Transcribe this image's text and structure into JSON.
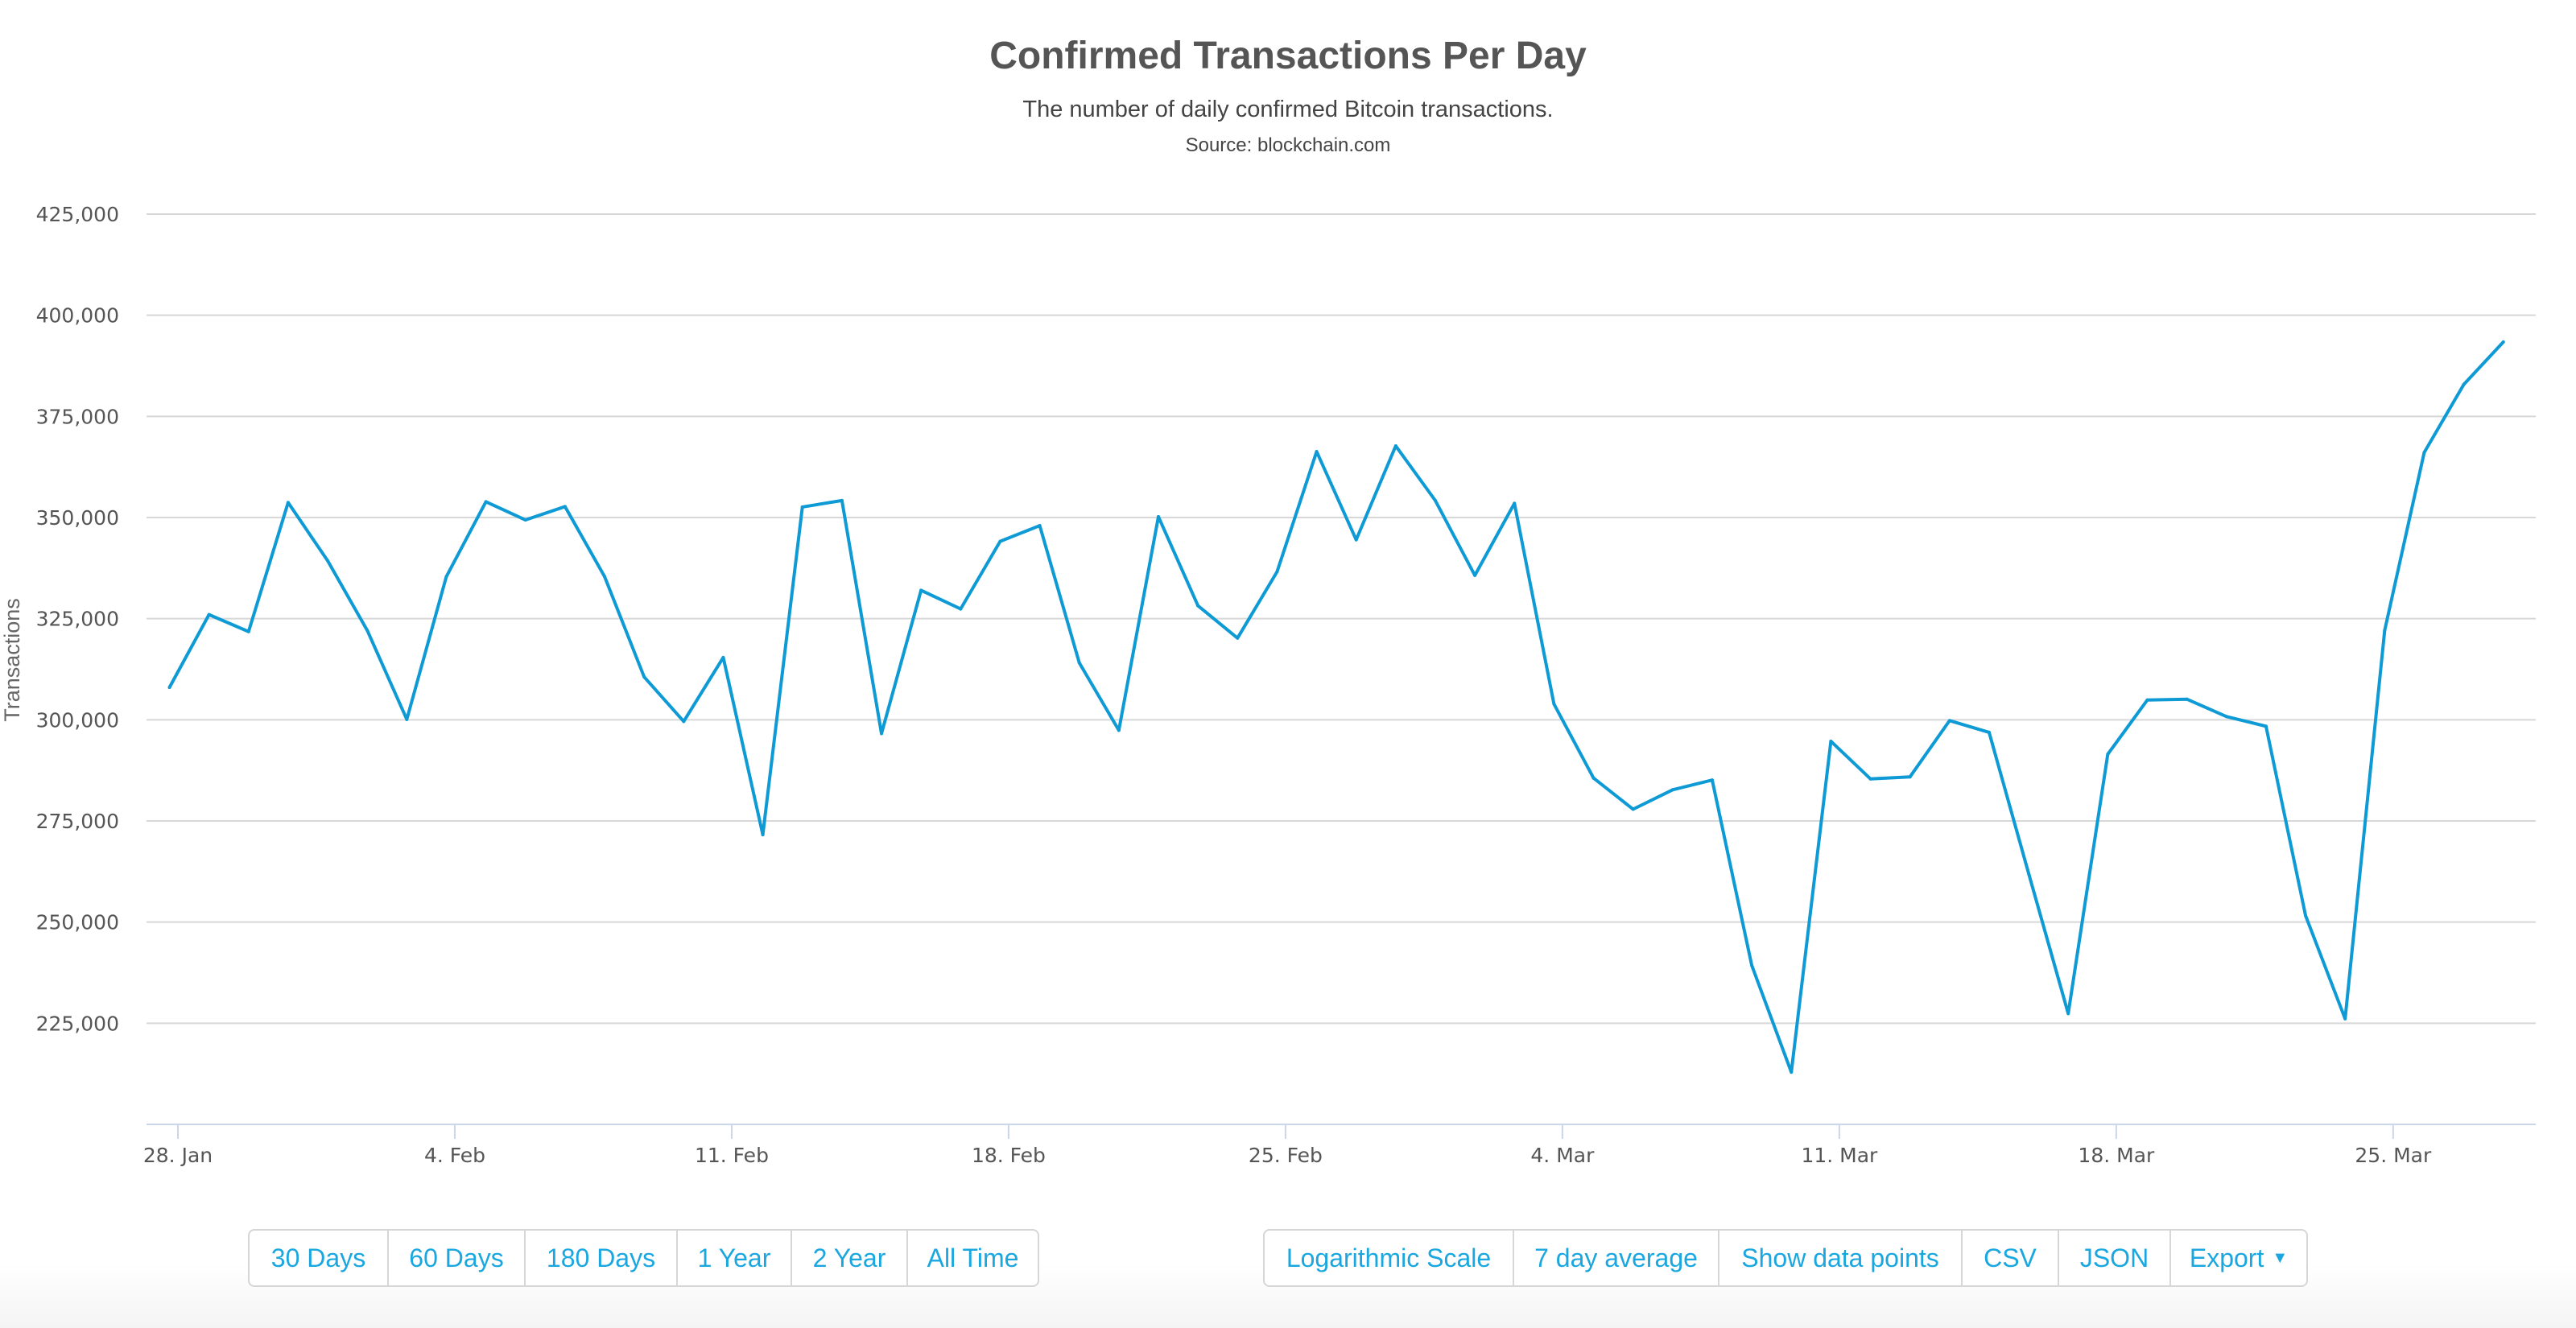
{
  "header": {
    "title": "Confirmed Transactions Per Day",
    "subtitle": "The number of daily confirmed Bitcoin transactions.",
    "source": "Source: blockchain.com"
  },
  "chart_data": {
    "type": "line",
    "title": "Confirmed Transactions Per Day",
    "subtitle": "The number of daily confirmed Bitcoin transactions.",
    "xlabel": "",
    "ylabel": "Transactions",
    "ylim": [
      200000,
      425000
    ],
    "yticks": [
      225000,
      250000,
      275000,
      300000,
      325000,
      350000,
      375000,
      400000,
      425000
    ],
    "ytick_labels": [
      "225,000",
      "250,000",
      "275,000",
      "300,000",
      "325,000",
      "350,000",
      "375,000",
      "400,000",
      "425,000"
    ],
    "xtick_labels": [
      "28. Jan",
      "4. Feb",
      "11. Feb",
      "18. Feb",
      "25. Feb",
      "4. Mar",
      "11. Mar",
      "18. Mar",
      "25. Mar"
    ],
    "grid": true,
    "legend": "none",
    "line_color": "#0d9ad5",
    "x": [
      "28 Jan",
      "29 Jan",
      "30 Jan",
      "31 Jan",
      "1 Feb",
      "2 Feb",
      "3 Feb",
      "4 Feb",
      "5 Feb",
      "6 Feb",
      "7 Feb",
      "8 Feb",
      "9 Feb",
      "10 Feb",
      "11 Feb",
      "12 Feb",
      "13 Feb",
      "14 Feb",
      "15 Feb",
      "16 Feb",
      "17 Feb",
      "18 Feb",
      "19 Feb",
      "20 Feb",
      "21 Feb",
      "22 Feb",
      "23 Feb",
      "24 Feb",
      "25 Feb",
      "26 Feb",
      "27 Feb",
      "28 Feb",
      "1 Mar",
      "2 Mar",
      "3 Mar",
      "4 Mar",
      "5 Mar",
      "6 Mar",
      "7 Mar",
      "8 Mar",
      "9 Mar",
      "10 Mar",
      "11 Mar",
      "12 Mar",
      "13 Mar",
      "14 Mar",
      "15 Mar",
      "16 Mar",
      "17 Mar",
      "18 Mar",
      "19 Mar",
      "20 Mar",
      "21 Mar",
      "22 Mar",
      "23 Mar",
      "24 Mar",
      "25 Mar",
      "26 Mar",
      "27 Mar",
      "28 Mar"
    ],
    "series": [
      {
        "values": [
          308000,
          326000,
          321800,
          353700,
          339300,
          322100,
          300100,
          335400,
          353900,
          349400,
          352700,
          335400,
          310600,
          299600,
          315400,
          271600,
          352600,
          354200,
          296600,
          332000,
          327400,
          344100,
          348000,
          314100,
          297400,
          350200,
          328200,
          320200,
          336600,
          366300,
          344500,
          367700,
          354200,
          335700,
          353500,
          303900,
          285600,
          277900,
          282700,
          285100,
          239300,
          212900,
          294700,
          285400,
          285900,
          299800,
          296900,
          262000,
          227400,
          291500,
          304900,
          305100,
          300800,
          298400,
          251600,
          226100,
          322100,
          366100,
          382900,
          393400
        ]
      }
    ]
  },
  "range_buttons": [
    "30 Days",
    "60 Days",
    "180 Days",
    "1 Year",
    "2 Year",
    "All Time"
  ],
  "option_buttons": [
    "Logarithmic Scale",
    "7 day average",
    "Show data points",
    "CSV",
    "JSON",
    "Export"
  ],
  "icons": {
    "export_caret": "caret-down-icon"
  },
  "colors": {
    "button_text": "#1aa7e0",
    "line": "#0d9ad5"
  }
}
